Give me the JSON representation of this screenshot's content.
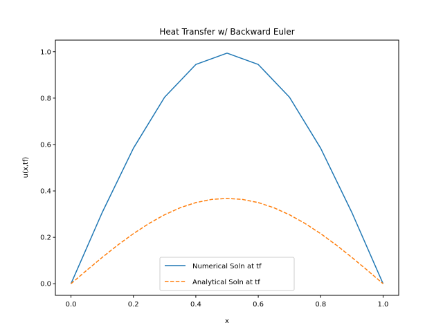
{
  "chart_data": {
    "type": "line",
    "title": "Heat Transfer w/ Backward Euler",
    "xlabel": "x",
    "ylabel": "u(x,tf)",
    "xlim": [
      -0.05,
      1.05
    ],
    "ylim": [
      -0.05,
      1.05
    ],
    "xticks": [
      0.0,
      0.2,
      0.4,
      0.6,
      0.8,
      1.0
    ],
    "yticks": [
      0.0,
      0.2,
      0.4,
      0.6,
      0.8,
      1.0
    ],
    "xtick_labels": [
      "0.0",
      "0.2",
      "0.4",
      "0.6",
      "0.8",
      "1.0"
    ],
    "ytick_labels": [
      "0.0",
      "0.2",
      "0.4",
      "0.6",
      "0.8",
      "1.0"
    ],
    "grid": false,
    "legend_position": "lower center",
    "series": [
      {
        "name": "Numerical Soln at tf",
        "color": "#1f77b4",
        "style": "solid",
        "x": [
          0.0,
          0.1,
          0.2,
          0.3,
          0.4,
          0.5,
          0.6,
          0.7,
          0.8,
          0.9,
          1.0
        ],
        "y": [
          0.0,
          0.307,
          0.584,
          0.804,
          0.945,
          0.994,
          0.945,
          0.804,
          0.584,
          0.307,
          0.0
        ]
      },
      {
        "name": "Analytical Soln at tf",
        "color": "#ff7f0e",
        "style": "dashed",
        "x": [
          0.0,
          0.05,
          0.1,
          0.15,
          0.2,
          0.25,
          0.3,
          0.35,
          0.4,
          0.45,
          0.5,
          0.55,
          0.6,
          0.65,
          0.7,
          0.75,
          0.8,
          0.85,
          0.9,
          0.95,
          1.0
        ],
        "y": [
          0.0,
          0.0575,
          0.1135,
          0.1668,
          0.2159,
          0.2598,
          0.2974,
          0.3277,
          0.3498,
          0.3633,
          0.3679,
          0.3633,
          0.3498,
          0.3277,
          0.2974,
          0.2598,
          0.2159,
          0.1668,
          0.1135,
          0.0575,
          0.0
        ]
      }
    ]
  }
}
